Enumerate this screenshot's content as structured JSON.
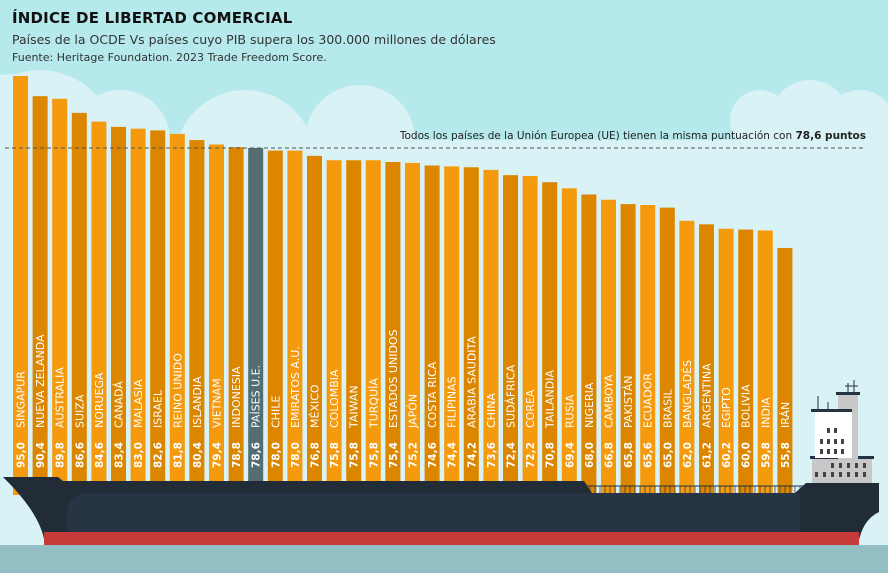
{
  "chart_data": {
    "type": "bar",
    "title": "ÍNDICE DE LIBERTAD COMERCIAL",
    "subtitle": "Países de la OCDE Vs países cuyo PIB supera los 300.000 millones de dólares",
    "source": "Fuente: Heritage Foundation. 2023 Trade Freedom Score.",
    "annotation": {
      "text": "Todos los países de la Unión Europea (UE) tienen la misma puntuación con ",
      "bold": "78,6 puntos",
      "value": 78.6
    },
    "categories": [
      "SINGAPUR",
      "NUEVA ZELANDA",
      "AUSTRALIA",
      "SUIZA",
      "NORUEGA",
      "CANADÁ",
      "MALASIA",
      "ISRAEL",
      "REINO UNIDO",
      "ISLANDIA",
      "VIETNAM",
      "INDONESIA",
      "PAÍSES U.E.",
      "CHILE",
      "EMIRATOS A.U.",
      "MÉXICO",
      "COLOMBIA",
      "TAIWAN",
      "TURQUÍA",
      "ESTADOS UNIDOS",
      "JAPÓN",
      "COSTA RICA",
      "FILIPINAS",
      "ARABIA SAUDITA",
      "CHINA",
      "SUDÁFRICA",
      "COREA",
      "TAILANDIA",
      "RUSIA",
      "NIGERIA",
      "CAMBOYA",
      "PAKISTÁN",
      "ECUADOR",
      "BRASIL",
      "BANGLADÉS",
      "ARGENTINA",
      "EGIPTO",
      "BOLIVIA",
      "INDIA",
      "IRÁN"
    ],
    "values": [
      95.0,
      90.4,
      89.8,
      86.6,
      84.6,
      83.4,
      83.0,
      82.6,
      81.8,
      80.4,
      79.4,
      78.8,
      78.6,
      78.0,
      78.0,
      76.8,
      75.8,
      75.8,
      75.8,
      75.4,
      75.2,
      74.6,
      74.4,
      74.2,
      73.6,
      72.4,
      72.2,
      70.8,
      69.4,
      68.0,
      66.8,
      65.8,
      65.6,
      65.0,
      62.0,
      61.2,
      60.2,
      60.0,
      59.8,
      55.8
    ],
    "value_labels": [
      "95,0",
      "90,4",
      "89,8",
      "86,6",
      "84,6",
      "83,4",
      "83,0",
      "82,6",
      "81,8",
      "80,4",
      "79,4",
      "78,8",
      "78,6",
      "78,0",
      "78,0",
      "76,8",
      "75,8",
      "75,8",
      "75,8",
      "75,4",
      "75,2",
      "74,6",
      "74,4",
      "74,2",
      "73,6",
      "72,4",
      "72,2",
      "70,8",
      "69,4",
      "68,0",
      "66,8",
      "65,8",
      "65,6",
      "65,0",
      "62,0",
      "61,2",
      "60,2",
      "60,0",
      "59,8",
      "55,8"
    ],
    "highlight": "PAÍSES U.E.",
    "colors": {
      "bar_light": "#f59a0c",
      "bar_dark": "#dc8600",
      "highlight": "#546d72",
      "label": "#ffffff"
    },
    "grid": false
  }
}
